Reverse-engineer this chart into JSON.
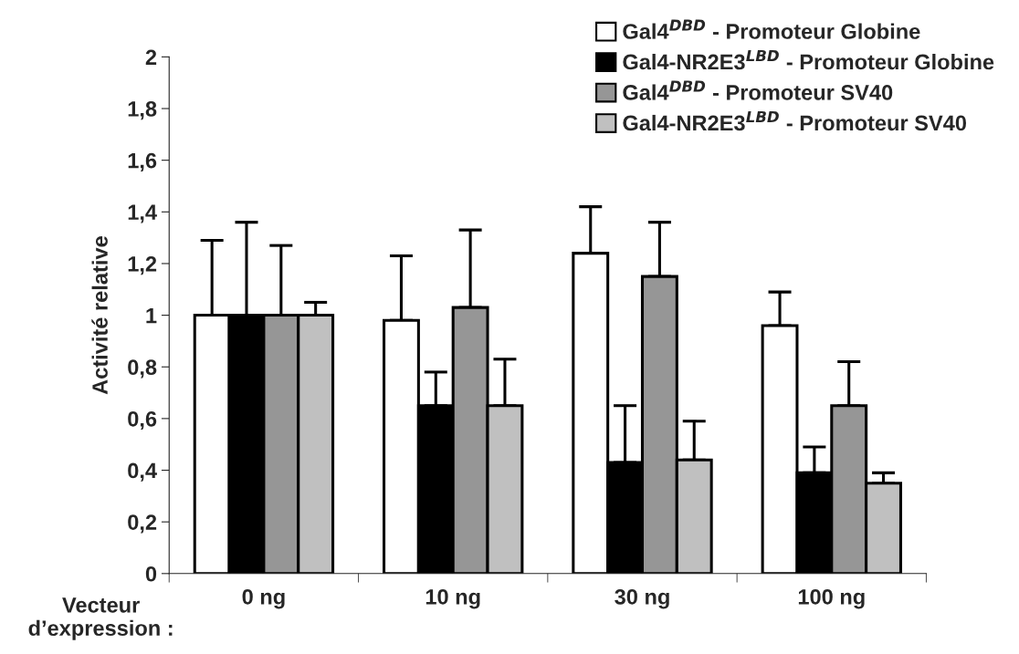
{
  "chart_data": {
    "type": "bar",
    "ylabel": "Activité relative",
    "xlabel": "Vecteur\nd’expression :",
    "categories": [
      "0 ng",
      "10 ng",
      "30 ng",
      "100 ng"
    ],
    "series": [
      {
        "name": "Gal4$^{DBD}$ - Promoteur Globine",
        "color": "#ffffff",
        "values": [
          1,
          0.98,
          1.24,
          0.96
        ],
        "errors": [
          [
            1,
            1.29
          ],
          [
            0.98,
            1.23
          ],
          [
            1.24,
            1.42
          ],
          [
            0.96,
            1.09
          ]
        ]
      },
      {
        "name": "Gal4-NR2E3$^{LBD}$ - Promoteur Globine",
        "color": "#000000",
        "values": [
          1,
          0.65,
          0.43,
          0.39
        ],
        "errors": [
          [
            1,
            1.36
          ],
          [
            0.65,
            0.78
          ],
          [
            0.43,
            0.65
          ],
          [
            0.39,
            0.49
          ]
        ]
      },
      {
        "name": "Gal4$^{DBD}$ - Promoteur SV40",
        "color": "#969696",
        "values": [
          1,
          1.03,
          1.15,
          0.65
        ],
        "errors": [
          [
            1,
            1.27
          ],
          [
            1.03,
            1.33
          ],
          [
            1.15,
            1.36
          ],
          [
            0.65,
            0.82
          ]
        ]
      },
      {
        "name": "Gal4-NR2E3$^{LBD}$ - Promoteur SV40",
        "color": "#c0c0c0",
        "values": [
          1,
          0.65,
          0.44,
          0.35
        ],
        "errors": [
          [
            1,
            1.05
          ],
          [
            0.65,
            0.83
          ],
          [
            0.44,
            0.59
          ],
          [
            0.35,
            0.39
          ]
        ]
      }
    ],
    "ylim": [
      0,
      2
    ],
    "yticks": [
      0,
      {
        "value": 0.2,
        "label": "0,2"
      },
      {
        "value": 0.4,
        "label": "0,4"
      },
      {
        "value": 0.6,
        "label": "0,6"
      },
      {
        "value": 0.8,
        "label": "0,8"
      },
      1,
      {
        "value": 1.2,
        "label": "1,2"
      },
      {
        "value": 1.4,
        "label": "1,4"
      },
      {
        "value": 1.6,
        "label": "1,6"
      },
      {
        "value": 1.8,
        "label": "1,8"
      },
      2
    ],
    "grid": false,
    "legend": "top right"
  }
}
